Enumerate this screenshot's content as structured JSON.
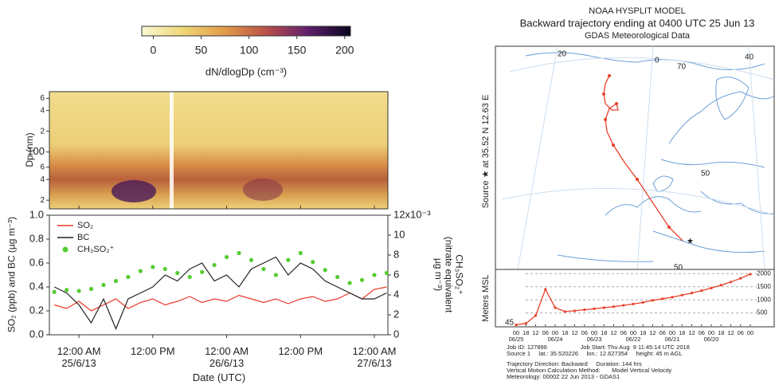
{
  "chart_data": [
    {
      "type": "colorbar",
      "label": "dN/dlogDp (cm⁻³)",
      "xlim": [
        -12,
        206
      ],
      "xticks": [
        0,
        50,
        100,
        150,
        200
      ],
      "colors": [
        "#fbf8d4",
        "#efd675",
        "#e29a48",
        "#b84f4a",
        "#5e1f6c",
        "#0a0520"
      ]
    },
    {
      "type": "heatmap",
      "ylabel": "Dp (nm)",
      "log": true,
      "ylim": [
        15,
        750
      ],
      "yticks": [
        {
          "value": 20,
          "label": "2"
        },
        {
          "value": 40,
          "label": "4"
        },
        {
          "value": 60,
          "label": "6"
        },
        100,
        {
          "value": 200,
          "label": "2"
        },
        {
          "value": 400,
          "label": "4"
        },
        {
          "value": 600,
          "label": "6"
        }
      ]
    },
    {
      "type": "line",
      "xlabel": "Date (UTC)",
      "ylabel": "SO₂ (ppb) and BC (µg m⁻³)",
      "y2label": "CH₃SO₂⁺\n(nitrate equivalent\nµg m⁻³)",
      "legend": "upper left",
      "xlim": [
        "2013-06-24T19:12",
        "2013-06-27T02:12"
      ],
      "xticks": [
        {
          "value": "2013-06-25T00:00",
          "label": "12:00 AM\n25/6/13"
        },
        {
          "value": "2013-06-25T12:00",
          "label": "12:00 PM"
        },
        {
          "value": "2013-06-26T00:00",
          "label": "12:00 AM\n26/6/13"
        },
        {
          "value": "2013-06-26T12:00",
          "label": "12:00 PM"
        },
        {
          "value": "2013-06-27T00:00",
          "label": "12:00 AM\n27/6/13"
        }
      ],
      "ylim": [
        0,
        1
      ],
      "yticks": [
        {
          "value": 0,
          "label": "0.0"
        },
        {
          "value": 0.2,
          "label": "0.2"
        },
        {
          "value": 0.4,
          "label": "0.4"
        },
        {
          "value": 0.6,
          "label": "0.6"
        },
        {
          "value": 0.8,
          "label": "0.8"
        },
        {
          "value": 1,
          "label": "1.0"
        }
      ],
      "y2lim": [
        0,
        0.012
      ],
      "y2ticks": [
        {
          "value": 0,
          "label": "0"
        },
        {
          "value": 0.002,
          "label": "2"
        },
        {
          "value": 0.004,
          "label": "4"
        },
        {
          "value": 0.006,
          "label": "6"
        },
        {
          "value": 0.008,
          "label": "8"
        },
        {
          "value": 0.01,
          "label": "10"
        },
        {
          "value": 0.012,
          "label": "12x10⁻³"
        }
      ],
      "x": [
        "2013-06-24T20:00",
        "2013-06-24T22:00",
        "2013-06-25T00:00",
        "2013-06-25T02:00",
        "2013-06-25T04:00",
        "2013-06-25T06:00",
        "2013-06-25T08:00",
        "2013-06-25T10:00",
        "2013-06-25T12:00",
        "2013-06-25T14:00",
        "2013-06-25T16:00",
        "2013-06-25T18:00",
        "2013-06-25T20:00",
        "2013-06-25T22:00",
        "2013-06-26T00:00",
        "2013-06-26T02:00",
        "2013-06-26T04:00",
        "2013-06-26T06:00",
        "2013-06-26T08:00",
        "2013-06-26T10:00",
        "2013-06-26T12:00",
        "2013-06-26T14:00",
        "2013-06-26T16:00",
        "2013-06-26T18:00",
        "2013-06-26T20:00",
        "2013-06-26T22:00",
        "2013-06-27T00:00",
        "2013-06-27T02:00"
      ],
      "series": [
        {
          "name": "SO₂",
          "color": "#e8382a",
          "style": "line",
          "values": [
            0.25,
            0.22,
            0.28,
            0.2,
            0.25,
            0.3,
            0.22,
            0.27,
            0.3,
            0.25,
            0.28,
            0.32,
            0.27,
            0.3,
            0.28,
            0.33,
            0.3,
            0.27,
            0.3,
            0.26,
            0.3,
            0.32,
            0.28,
            0.3,
            0.35,
            0.3,
            0.38,
            0.4
          ]
        },
        {
          "name": "BC",
          "color": "#222222",
          "style": "line",
          "values": [
            0.4,
            0.35,
            0.25,
            0.1,
            0.3,
            0.05,
            0.3,
            0.35,
            0.4,
            0.5,
            0.45,
            0.55,
            0.6,
            0.45,
            0.5,
            0.4,
            0.55,
            0.6,
            0.65,
            0.5,
            0.6,
            0.55,
            0.45,
            0.4,
            0.35,
            0.3,
            0.3,
            0.35
          ]
        },
        {
          "name": "CH₃SO₂⁺",
          "color": "#55cc33",
          "style": "markers",
          "axis": "y2",
          "values": [
            0.0043,
            0.0045,
            0.0044,
            0.0046,
            0.005,
            0.0054,
            0.0058,
            0.0064,
            0.0068,
            0.0066,
            0.0062,
            0.0058,
            0.0063,
            0.007,
            0.0078,
            0.0082,
            0.0075,
            0.0066,
            0.006,
            0.0075,
            0.0082,
            0.0073,
            0.0065,
            0.0058,
            0.0052,
            0.0055,
            0.006,
            0.0062
          ]
        }
      ]
    },
    {
      "type": "line",
      "ylabel": "Meters MSL",
      "start_label": "45",
      "categories": [
        "00",
        "18",
        "12",
        "06",
        "00",
        "18",
        "12",
        "06",
        "00",
        "18",
        "12",
        "06",
        "00",
        "18",
        "12",
        "06",
        "00",
        "18",
        "12",
        "06",
        "00",
        "18",
        "12",
        "06",
        "00"
      ],
      "dates": [
        "06/25",
        "06/24",
        "06/23",
        "06/22",
        "06/21",
        "06/20"
      ],
      "ylim": [
        0,
        2100
      ],
      "yticks": [
        500,
        1000,
        1500,
        2000
      ],
      "series": [
        {
          "color": "#e8402a",
          "values": [
            45,
            100,
            400,
            1400,
            700,
            550,
            580,
            620,
            660,
            700,
            740,
            790,
            840,
            900,
            980,
            1040,
            1100,
            1180,
            1260,
            1350,
            1450,
            1560,
            1680,
            1820,
            1980
          ]
        }
      ]
    }
  ],
  "hysplit": {
    "title": "NOAA HYSPLIT MODEL",
    "subtitle": "Backward trajectory ending at 0400 UTC 25 Jun 13",
    "data_source": "GDAS Meteorological Data",
    "source_label": "Source ★  at  35.52 N   12.63 E",
    "map_labels": [
      "20",
      "0",
      "70",
      "40",
      "50",
      "50"
    ],
    "info": [
      "Job ID: 127896                    Job Start: Thu Aug  9 11:45:14 UTC 2018",
      "Source 1     lat.: 35.520226     lon.: 12.627354     height: 45 m AGL",
      "Trajectory Direction: Backward     Duration: 144 hrs",
      "Vertical Motion Calculation Method:       Model Vertical Velocity",
      "Meteorology: 0000Z 22 Jun 2013 - GDAS1"
    ]
  }
}
